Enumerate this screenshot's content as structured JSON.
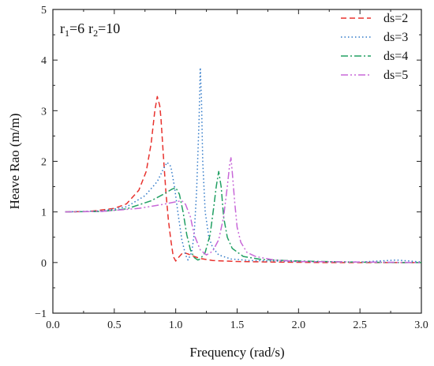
{
  "chart_data": {
    "type": "line",
    "xlabel": "Frequency (rad/s)",
    "ylabel": "Heave Rao (m/m)",
    "xlim": [
      0.0,
      3.0
    ],
    "ylim": [
      -1,
      5
    ],
    "xticks": [
      0.0,
      0.5,
      1.0,
      1.5,
      2.0,
      2.5,
      3.0
    ],
    "xtick_labels": [
      "0.0",
      "0.5",
      "1.0",
      "1.5",
      "2.0",
      "2.5",
      "3.0"
    ],
    "yticks": [
      -1,
      0,
      1,
      2,
      3,
      4,
      5
    ],
    "ytick_labels": [
      "−1",
      "0",
      "1",
      "2",
      "3",
      "4",
      "5"
    ],
    "grid": false,
    "legend_position": "top-right",
    "annotation": {
      "r1_base": "r",
      "r1_sub": "1",
      "r1_value": "=6",
      "r2_base": "r",
      "r2_sub": "2",
      "r2_value": "=10"
    },
    "series": [
      {
        "name": "ds=2",
        "color": "#e8322e",
        "dash": "dashed",
        "x": [
          0.1,
          0.3,
          0.5,
          0.6,
          0.7,
          0.76,
          0.8,
          0.83,
          0.85,
          0.87,
          0.88,
          0.9,
          0.92,
          0.94,
          0.96,
          0.98,
          1.0,
          1.03,
          1.06,
          1.1,
          1.15,
          1.2,
          1.3,
          1.5,
          1.8,
          2.2,
          2.6,
          3.0
        ],
        "y": [
          1.0,
          1.01,
          1.07,
          1.16,
          1.43,
          1.8,
          2.35,
          3.0,
          3.28,
          3.1,
          2.85,
          2.1,
          1.4,
          0.85,
          0.45,
          0.12,
          0.03,
          0.12,
          0.2,
          0.17,
          0.12,
          0.08,
          0.04,
          0.02,
          0.01,
          0.0,
          0.0,
          0.0
        ]
      },
      {
        "name": "ds=3",
        "color": "#2f78c8",
        "dash": "dotted",
        "x": [
          0.1,
          0.4,
          0.6,
          0.75,
          0.85,
          0.9,
          0.93,
          0.96,
          0.99,
          1.02,
          1.05,
          1.08,
          1.1,
          1.13,
          1.15,
          1.17,
          1.19,
          1.2,
          1.21,
          1.22,
          1.24,
          1.27,
          1.3,
          1.35,
          1.45,
          1.6,
          2.0,
          2.5,
          2.8,
          3.0
        ],
        "y": [
          1.0,
          1.02,
          1.1,
          1.32,
          1.6,
          1.85,
          1.98,
          1.9,
          1.5,
          0.95,
          0.45,
          0.15,
          0.05,
          0.2,
          0.55,
          1.4,
          2.8,
          3.85,
          3.2,
          2.0,
          1.0,
          0.5,
          0.3,
          0.15,
          0.07,
          0.04,
          0.02,
          0.01,
          0.05,
          0.01
        ]
      },
      {
        "name": "ds=4",
        "color": "#22a064",
        "dash": "dashdot",
        "x": [
          0.1,
          0.4,
          0.6,
          0.8,
          0.9,
          0.97,
          1.0,
          1.03,
          1.06,
          1.09,
          1.12,
          1.15,
          1.18,
          1.2,
          1.24,
          1.28,
          1.31,
          1.33,
          1.35,
          1.37,
          1.39,
          1.42,
          1.46,
          1.55,
          1.7,
          2.0,
          2.4,
          2.8,
          3.0
        ],
        "y": [
          1.0,
          1.01,
          1.06,
          1.22,
          1.35,
          1.45,
          1.48,
          1.35,
          1.0,
          0.55,
          0.25,
          0.1,
          0.05,
          0.07,
          0.2,
          0.55,
          1.1,
          1.5,
          1.8,
          1.5,
          0.9,
          0.5,
          0.28,
          0.12,
          0.06,
          0.03,
          0.01,
          0.0,
          0.0
        ]
      },
      {
        "name": "ds=5",
        "color": "#c868d8",
        "dash": "dashdotdot",
        "x": [
          0.1,
          0.4,
          0.7,
          0.9,
          1.0,
          1.05,
          1.08,
          1.12,
          1.15,
          1.2,
          1.25,
          1.3,
          1.35,
          1.39,
          1.42,
          1.44,
          1.45,
          1.46,
          1.48,
          1.5,
          1.53,
          1.58,
          1.65,
          1.8,
          2.0,
          2.5,
          3.0
        ],
        "y": [
          1.0,
          1.01,
          1.07,
          1.15,
          1.2,
          1.22,
          1.15,
          0.9,
          0.55,
          0.25,
          0.15,
          0.22,
          0.45,
          0.9,
          1.5,
          1.95,
          2.07,
          1.8,
          1.2,
          0.7,
          0.4,
          0.2,
          0.12,
          0.05,
          0.02,
          0.01,
          0.0
        ]
      }
    ]
  }
}
